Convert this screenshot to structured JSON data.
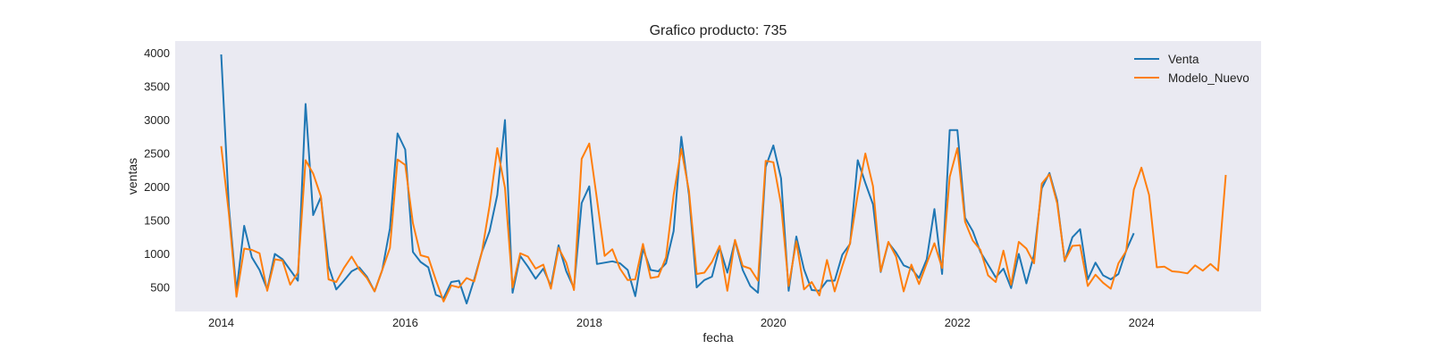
{
  "chart_data": {
    "type": "line",
    "title": "Grafico producto: 735",
    "xlabel": "fecha",
    "ylabel": "ventas",
    "xlim": [
      2013.5,
      2025.3
    ],
    "ylim": [
      140,
      4180
    ],
    "grid": false,
    "legend_position": "top-right",
    "x_ticks": [
      {
        "value": 2014,
        "label": "2014"
      },
      {
        "value": 2016,
        "label": "2016"
      },
      {
        "value": 2018,
        "label": "2018"
      },
      {
        "value": 2020,
        "label": "2020"
      },
      {
        "value": 2022,
        "label": "2022"
      },
      {
        "value": 2024,
        "label": "2024"
      }
    ],
    "y_ticks": [
      {
        "value": 500,
        "label": "500"
      },
      {
        "value": 1000,
        "label": "1000"
      },
      {
        "value": 1500,
        "label": "1500"
      },
      {
        "value": 2000,
        "label": "2000"
      },
      {
        "value": 2500,
        "label": "2500"
      },
      {
        "value": 3000,
        "label": "3000"
      },
      {
        "value": 3500,
        "label": "3500"
      },
      {
        "value": 4000,
        "label": "4000"
      }
    ],
    "x_start_year": 2014,
    "series": [
      {
        "name": "Venta",
        "color": "#1f77b4",
        "values": [
          3980,
          1700,
          440,
          1420,
          950,
          760,
          470,
          1000,
          920,
          760,
          600,
          3240,
          1580,
          1850,
          820,
          470,
          600,
          740,
          800,
          660,
          440,
          760,
          1380,
          2800,
          2560,
          1030,
          880,
          800,
          390,
          340,
          580,
          600,
          260,
          620,
          1030,
          1340,
          1880,
          3000,
          420,
          970,
          810,
          630,
          780,
          520,
          1130,
          740,
          490,
          1760,
          2010,
          850,
          870,
          890,
          860,
          760,
          370,
          1080,
          760,
          740,
          860,
          1340,
          2750,
          1880,
          500,
          610,
          660,
          1100,
          720,
          1200,
          760,
          520,
          420,
          2300,
          2620,
          2130,
          450,
          1260,
          770,
          460,
          450,
          600,
          600,
          990,
          1150,
          2400,
          2060,
          1740,
          730,
          1170,
          1020,
          830,
          780,
          640,
          920,
          1670,
          700,
          2850,
          2850,
          1540,
          1340,
          1030,
          840,
          650,
          780,
          490,
          1000,
          560,
          990,
          1980,
          2210,
          1800,
          890,
          1250,
          1370,
          620,
          870,
          680,
          620,
          700,
          1050,
          1310
        ]
      },
      {
        "name": "Modelo_Nuevo",
        "color": "#ff7f0e",
        "values": [
          2610,
          1600,
          360,
          1080,
          1060,
          1010,
          450,
          920,
          900,
          540,
          720,
          2400,
          2200,
          1860,
          620,
          580,
          790,
          960,
          770,
          640,
          440,
          760,
          1090,
          2410,
          2330,
          1460,
          980,
          950,
          610,
          290,
          530,
          500,
          640,
          590,
          1030,
          1720,
          2580,
          1990,
          500,
          1010,
          960,
          780,
          840,
          480,
          1090,
          870,
          460,
          2420,
          2650,
          1820,
          970,
          1070,
          780,
          610,
          620,
          1150,
          640,
          660,
          950,
          1880,
          2570,
          1940,
          700,
          720,
          880,
          1120,
          450,
          1210,
          820,
          780,
          600,
          2390,
          2370,
          1740,
          520,
          1190,
          470,
          580,
          380,
          910,
          440,
          820,
          1160,
          1890,
          2500,
          2010,
          740,
          1180,
          960,
          440,
          840,
          550,
          860,
          1160,
          790,
          2150,
          2580,
          1480,
          1200,
          1060,
          680,
          580,
          1050,
          540,
          1180,
          1080,
          860,
          2050,
          2190,
          1760,
          900,
          1120,
          1130,
          520,
          690,
          570,
          480,
          860,
          1040,
          1960,
          2290,
          1880,
          800,
          810,
          740,
          730,
          710,
          830,
          750,
          850,
          750,
          2180
        ]
      }
    ]
  }
}
